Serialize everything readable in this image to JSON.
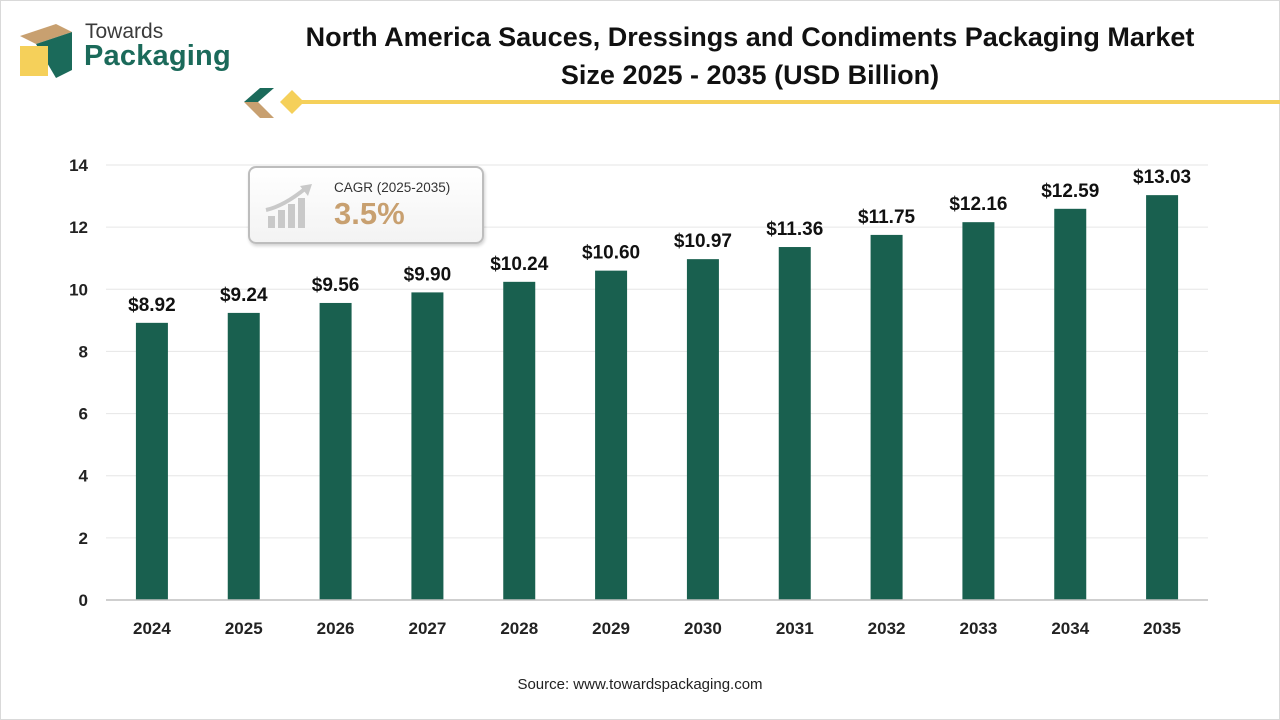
{
  "brand": {
    "line1": "Towards",
    "line2": "Packaging",
    "colors": {
      "green": "#1b6a5a",
      "gold": "#f5d05a",
      "tan": "#c8a070"
    }
  },
  "title": {
    "line1": "North America Sauces, Dressings and Condiments Packaging Market",
    "line2": "Size 2025 - 2035 (USD Billion)"
  },
  "cagr": {
    "label": "CAGR (2025-2035)",
    "value": "3.5%",
    "icon": "growth-chart-arrow-icon"
  },
  "source": "Source: www.towardspackaging.com",
  "chart_data": {
    "type": "bar",
    "categories": [
      "2024",
      "2025",
      "2026",
      "2027",
      "2028",
      "2029",
      "2030",
      "2031",
      "2032",
      "2033",
      "2034",
      "2035"
    ],
    "values": [
      8.92,
      9.24,
      9.56,
      9.9,
      10.24,
      10.6,
      10.97,
      11.36,
      11.75,
      12.16,
      12.59,
      13.03
    ],
    "data_labels": [
      "$8.92",
      "$9.24",
      "$9.56",
      "$9.90",
      "$10.24",
      "$10.60",
      "$10.97",
      "$11.36",
      "$11.75",
      "$12.16",
      "$12.59",
      "$13.03"
    ],
    "ylim": [
      0,
      14
    ],
    "yticks": [
      0,
      2,
      4,
      6,
      8,
      10,
      12,
      14
    ],
    "grid": true,
    "bar_color": "#19604f",
    "xlabel": "",
    "ylabel": ""
  }
}
